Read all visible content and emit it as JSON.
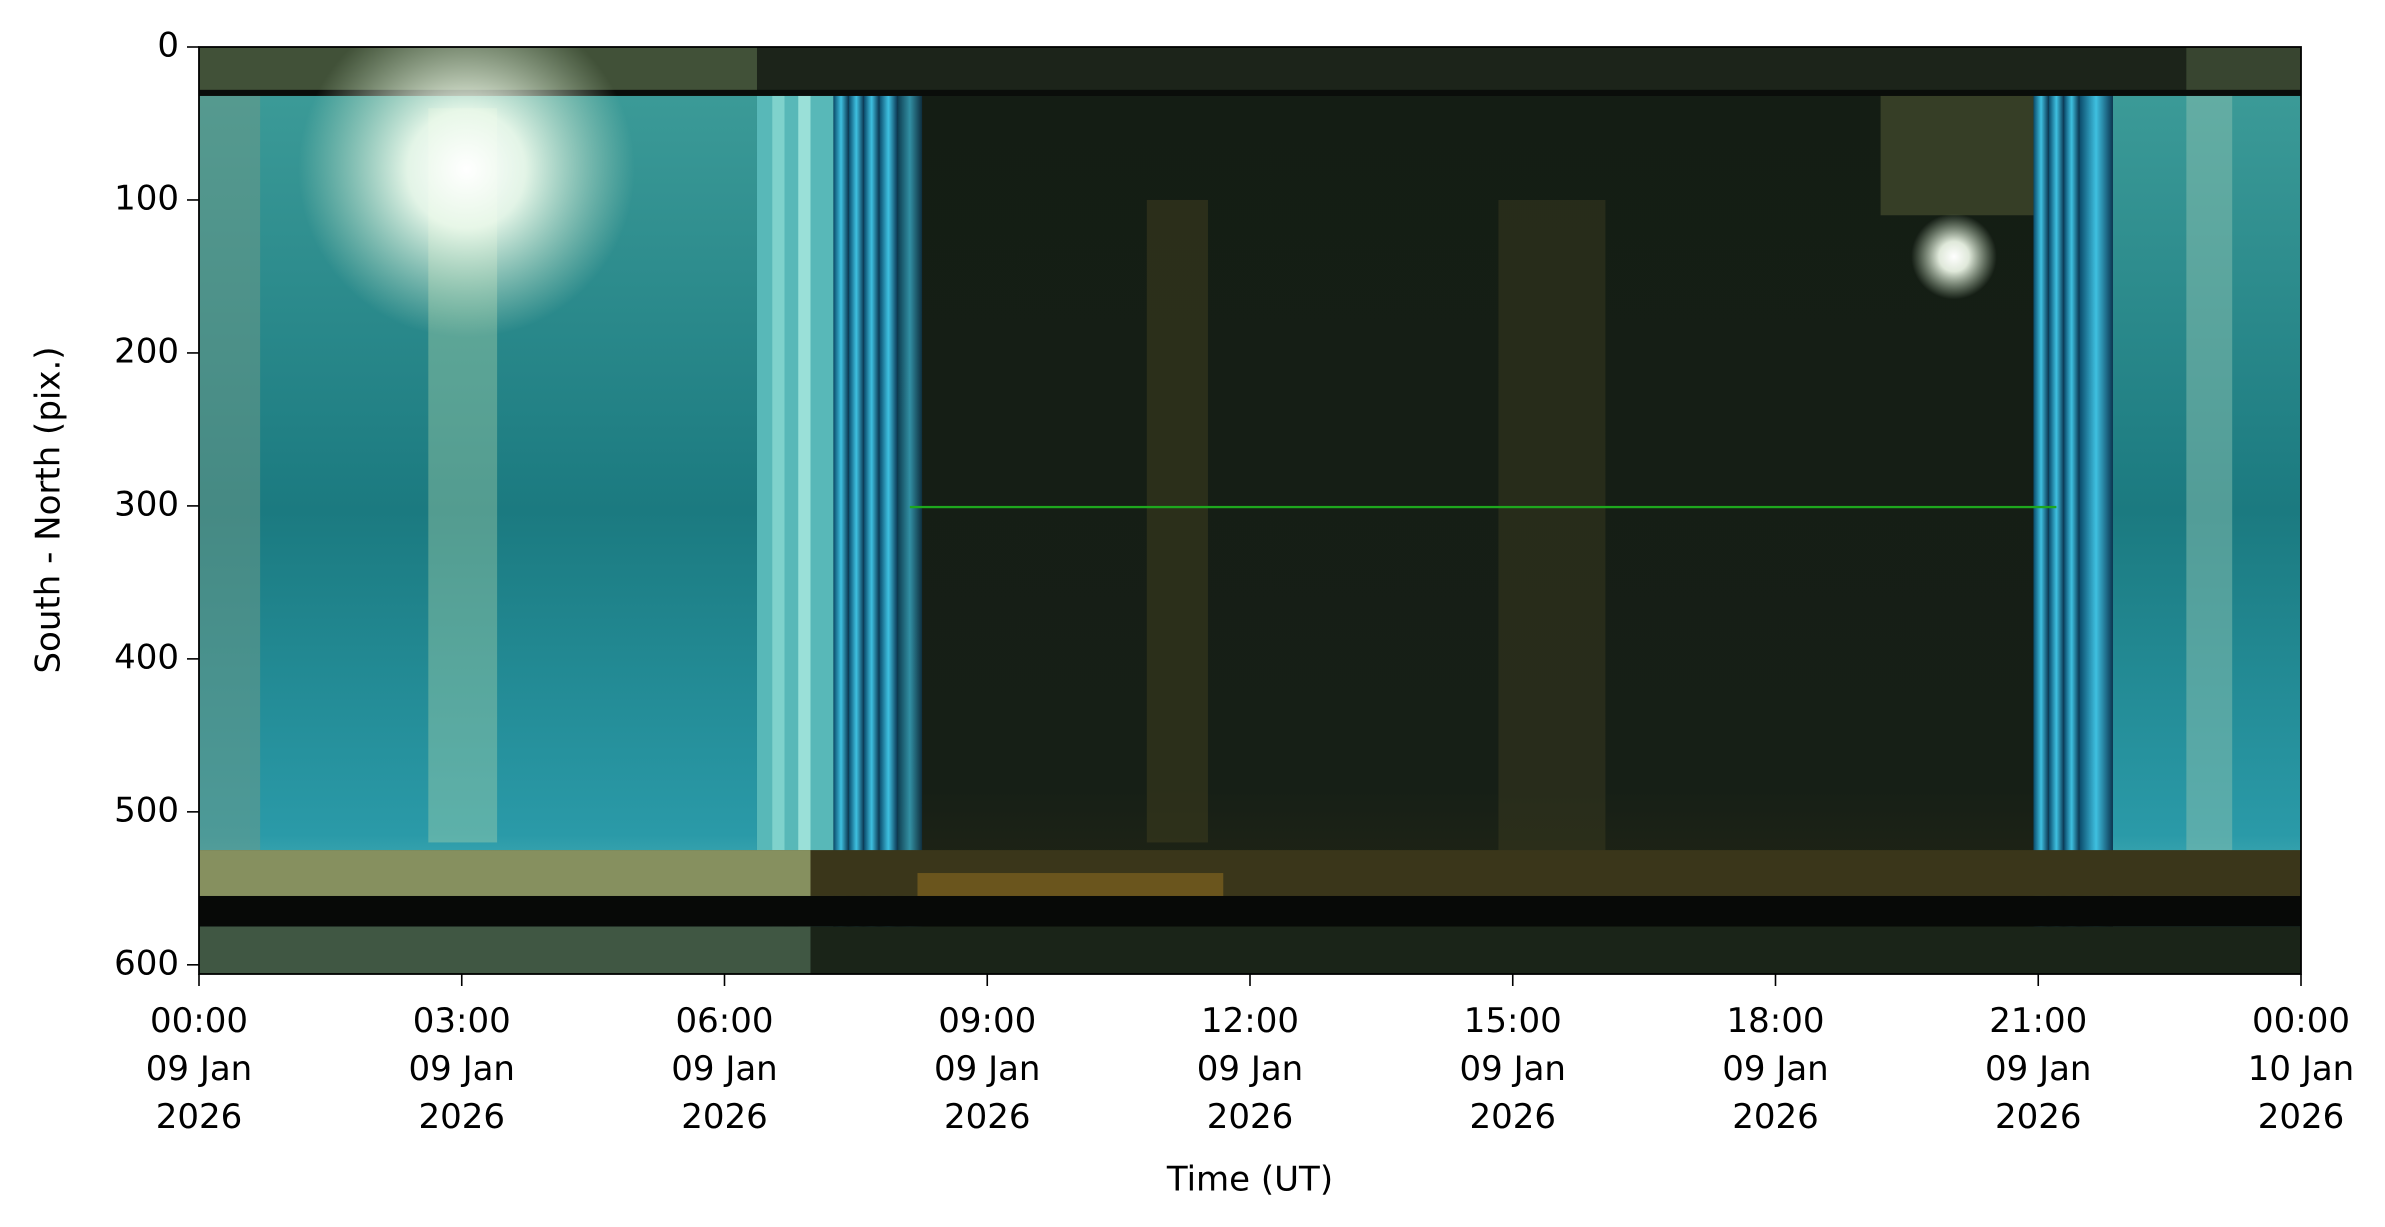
{
  "chart_data": {
    "type": "keogram",
    "xlabel": "Time (UT)",
    "ylabel": "South - North (pix.)",
    "xlim": [
      "2026-01-09T00:00",
      "2026-01-10T00:00"
    ],
    "xticks": [
      {
        "value": "2026-01-09T00:00",
        "label": "00:00\n09 Jan\n2026"
      },
      {
        "value": "2026-01-09T03:00",
        "label": "03:00\n09 Jan\n2026"
      },
      {
        "value": "2026-01-09T06:00",
        "label": "06:00\n09 Jan\n2026"
      },
      {
        "value": "2026-01-09T09:00",
        "label": "09:00\n09 Jan\n2026"
      },
      {
        "value": "2026-01-09T12:00",
        "label": "12:00\n09 Jan\n2026"
      },
      {
        "value": "2026-01-09T15:00",
        "label": "15:00\n09 Jan\n2026"
      },
      {
        "value": "2026-01-09T18:00",
        "label": "18:00\n09 Jan\n2026"
      },
      {
        "value": "2026-01-09T21:00",
        "label": "21:00\n09 Jan\n2026"
      },
      {
        "value": "2026-01-10T00:00",
        "label": "00:00\n10 Jan\n2026"
      }
    ],
    "ylim": [
      606,
      0
    ],
    "yticks": [
      0,
      100,
      200,
      300,
      400,
      500,
      600
    ]
  }
}
